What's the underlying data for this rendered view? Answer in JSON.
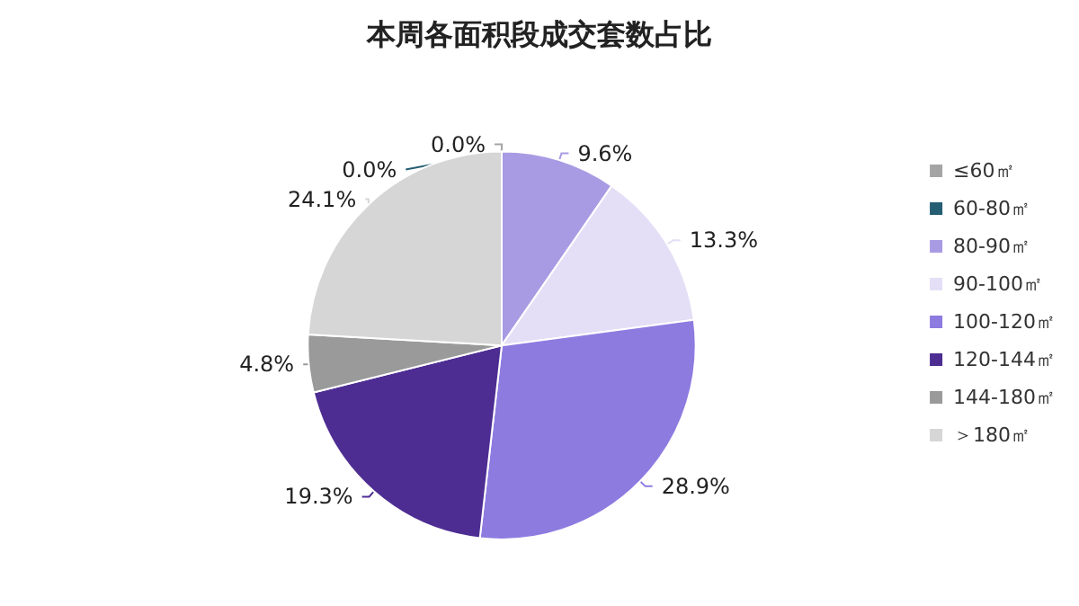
{
  "chart_data": {
    "type": "pie",
    "title": "本周各面积段成交套数占比",
    "categories": [
      "≤60㎡",
      "60-80㎡",
      "80-90㎡",
      "90-100㎡",
      "100-120㎡",
      "120-144㎡",
      "144-180㎡",
      "＞180㎡"
    ],
    "values": [
      0.0,
      0.0,
      9.6,
      13.3,
      28.9,
      19.3,
      4.8,
      24.1
    ],
    "value_labels": [
      "0.0%",
      "0.0%",
      "9.6%",
      "13.3%",
      "28.9%",
      "19.3%",
      "4.8%",
      "24.1%"
    ],
    "colors": [
      "#a5a5a5",
      "#255e73",
      "#a99be3",
      "#e4dff6",
      "#8e7be0",
      "#4e2d92",
      "#9a9a9a",
      "#d6d6d6"
    ],
    "legend": "right"
  }
}
